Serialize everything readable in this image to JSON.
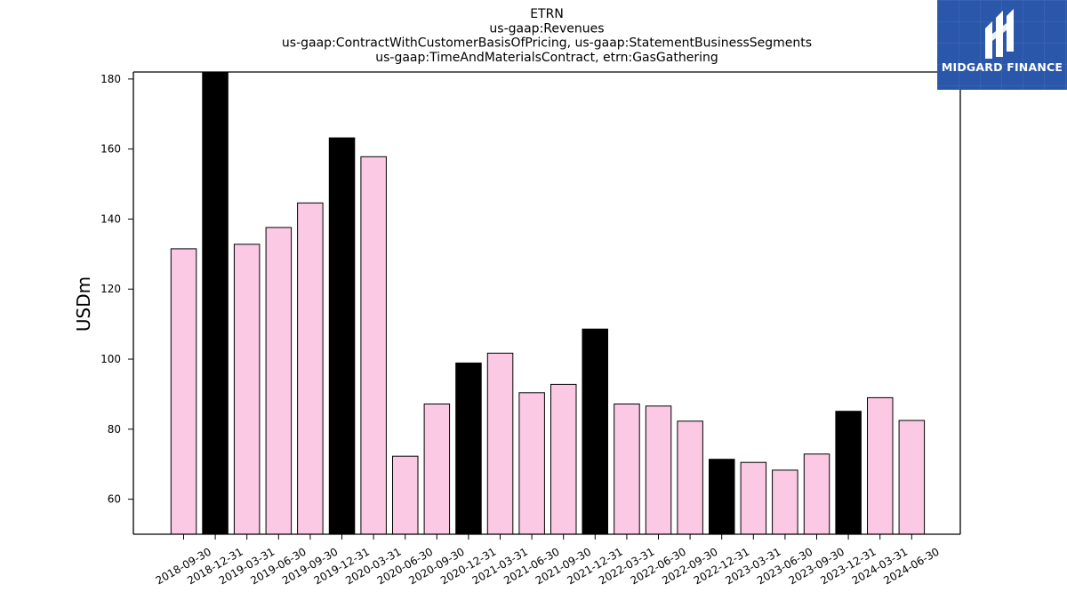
{
  "chart_data": {
    "type": "bar",
    "title_lines": [
      "ETRN",
      "us-gaap:Revenues",
      "us-gaap:ContractWithCustomerBasisOfPricing, us-gaap:StatementBusinessSegments",
      "us-gaap:TimeAndMaterialsContract, etrn:GasGathering"
    ],
    "ylabel": "USDm",
    "xlabel": "",
    "ylim": [
      50,
      182
    ],
    "yticks": [
      60,
      80,
      100,
      120,
      140,
      160,
      180
    ],
    "categories": [
      "2018-09-30",
      "2018-12-31",
      "2019-03-31",
      "2019-06-30",
      "2019-09-30",
      "2019-12-31",
      "2020-03-31",
      "2020-06-30",
      "2020-09-30",
      "2020-12-31",
      "2021-03-31",
      "2021-06-30",
      "2021-09-30",
      "2021-12-31",
      "2022-03-31",
      "2022-06-30",
      "2022-09-30",
      "2022-12-31",
      "2023-03-31",
      "2023-06-30",
      "2023-09-30",
      "2023-12-31",
      "2024-03-31",
      "2024-06-30"
    ],
    "values": [
      131.5,
      182,
      132.8,
      137.6,
      144.6,
      163.2,
      157.8,
      72.3,
      87.2,
      98.9,
      101.7,
      90.4,
      92.8,
      108.6,
      87.2,
      86.6,
      82.3,
      71.4,
      70.5,
      68.3,
      72.9,
      85.1,
      89.0,
      82.5
    ],
    "bar_colors": [
      "#fbc9e3",
      "#000000",
      "#fbc9e3",
      "#fbc9e3",
      "#fbc9e3",
      "#000000",
      "#fbc9e3",
      "#fbc9e3",
      "#fbc9e3",
      "#000000",
      "#fbc9e3",
      "#fbc9e3",
      "#fbc9e3",
      "#000000",
      "#fbc9e3",
      "#fbc9e3",
      "#fbc9e3",
      "#000000",
      "#fbc9e3",
      "#fbc9e3",
      "#fbc9e3",
      "#000000",
      "#fbc9e3",
      "#fbc9e3"
    ],
    "grid": false,
    "legend": "none"
  },
  "logo": {
    "text": "MIDGARD FINANCE",
    "icon": "midgard-finance-logo-icon",
    "background": "#2b57ab"
  }
}
